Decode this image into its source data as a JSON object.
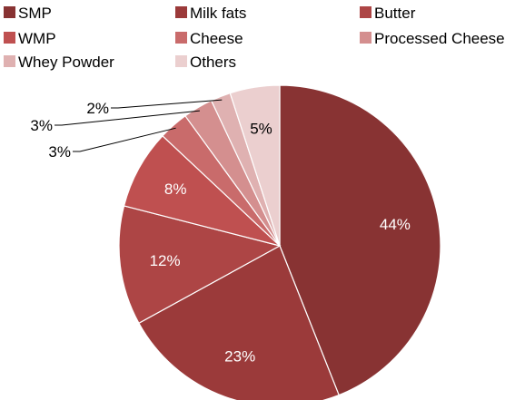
{
  "chart_data": {
    "type": "pie",
    "title": "",
    "legend_position": "top",
    "slices": [
      {
        "label": "SMP",
        "value": 44,
        "display": "44%",
        "color": "#883333"
      },
      {
        "label": "Milk fats",
        "value": 23,
        "display": "23%",
        "color": "#9b3a3a"
      },
      {
        "label": "Butter",
        "value": 12,
        "display": "12%",
        "color": "#ad4545"
      },
      {
        "label": "WMP",
        "value": 8,
        "display": "8%",
        "color": "#bf5050"
      },
      {
        "label": "Cheese",
        "value": 3,
        "display": "3%",
        "color": "#c96b6b"
      },
      {
        "label": "Processed Cheese",
        "value": 3,
        "display": "3%",
        "color": "#d48f8f"
      },
      {
        "label": "Whey Powder",
        "value": 2,
        "display": "2%",
        "color": "#dfb1b1"
      },
      {
        "label": "Others",
        "value": 5,
        "display": "5%",
        "color": "#ebcfcf"
      }
    ]
  }
}
